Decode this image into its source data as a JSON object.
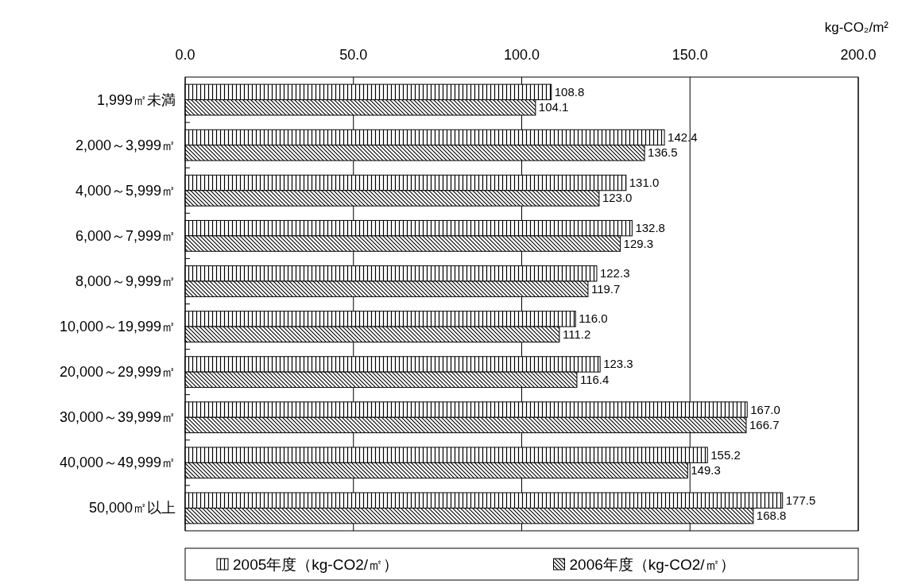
{
  "chart_data": {
    "type": "bar",
    "orientation": "horizontal",
    "xlabel": "kg-CO₂/m²",
    "categories": [
      "1,999㎡未満",
      "2,000～3,999㎡",
      "4,000～5,999㎡",
      "6,000～7,999㎡",
      "8,000～9,999㎡",
      "10,000～19,999㎡",
      "20,000～29,999㎡",
      "30,000～39,999㎡",
      "40,000～49,999㎡",
      "50,000㎡以上"
    ],
    "series": [
      {
        "name": "2005年度（kg-CO2/㎡）",
        "color": "#000000",
        "values": [
          108.8,
          142.4,
          131.0,
          132.8,
          122.3,
          116.0,
          123.3,
          167.0,
          155.2,
          177.5
        ],
        "value_labels": [
          "108.8",
          "142.4",
          "131.0",
          "132.8",
          "122.3",
          "116.0",
          "123.3",
          "167.0",
          "155.2",
          "177.5"
        ]
      },
      {
        "name": "2006年度（kg-CO2/㎡）",
        "color": "#000000",
        "values": [
          104.1,
          136.5,
          123.0,
          129.3,
          119.7,
          111.2,
          116.4,
          166.7,
          149.3,
          168.8
        ],
        "value_labels": [
          "104.1",
          "136.5",
          "123.0",
          "129.3",
          "119.7",
          "111.2",
          "116.4",
          "166.7",
          "149.3",
          "168.8"
        ]
      }
    ],
    "xlim": [
      0,
      200
    ],
    "xticks": [
      {
        "value": 0,
        "label": "0.0"
      },
      {
        "value": 50,
        "label": "50.0"
      },
      {
        "value": 100,
        "label": "100.0"
      },
      {
        "value": 150,
        "label": "150.0"
      },
      {
        "value": 200,
        "label": "200.0"
      }
    ],
    "grid": "x",
    "legend": "bottom"
  }
}
